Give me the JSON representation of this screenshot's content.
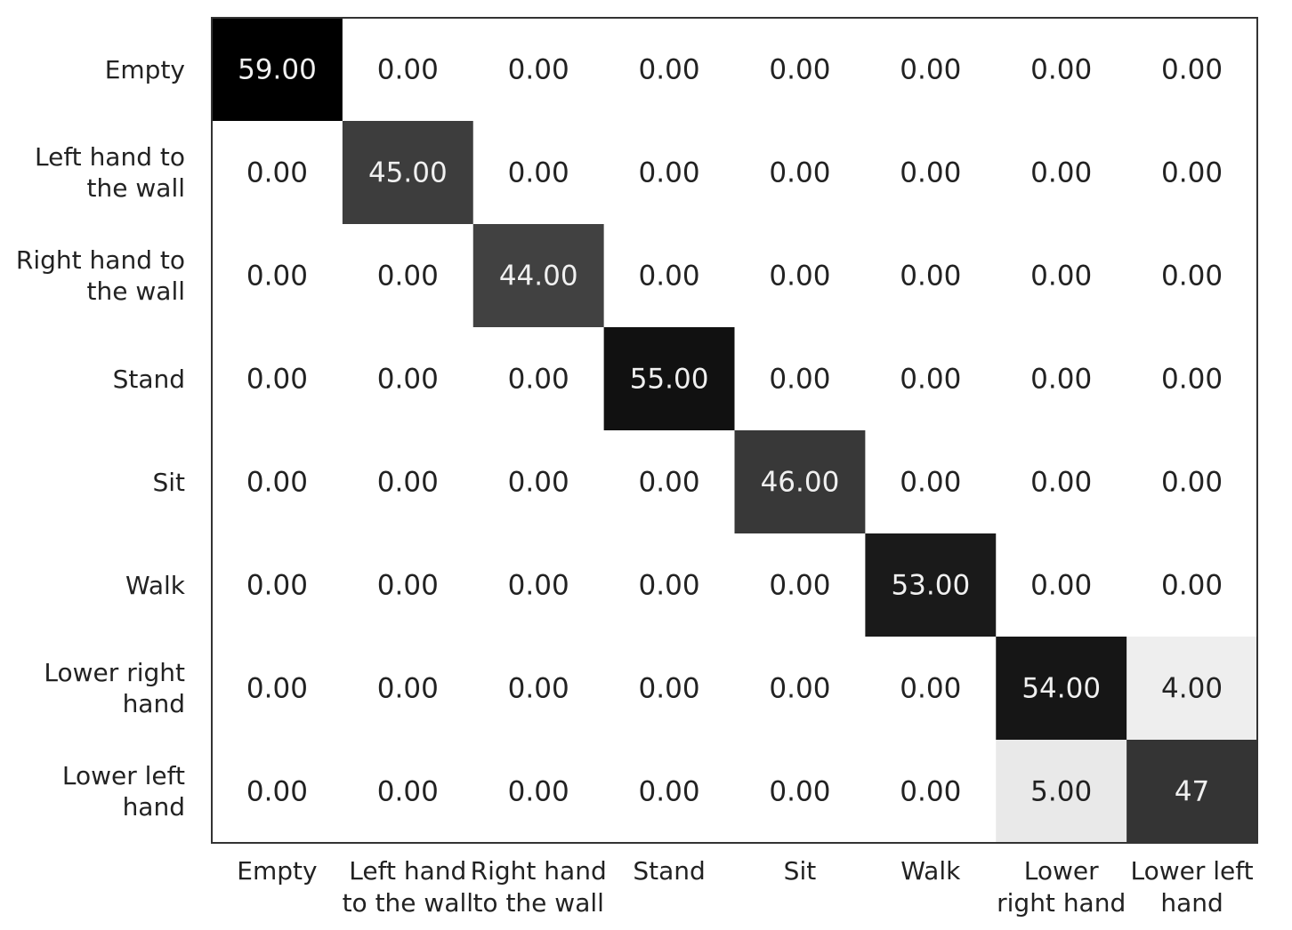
{
  "chart_data": {
    "type": "heatmap",
    "x_categories": [
      "Empty",
      "Left hand to the wall",
      "Right hand to the wall",
      "Stand",
      "Sit",
      "Walk",
      "Lower right hand",
      "Lower left hand"
    ],
    "y_categories": [
      "Empty",
      "Left hand to the wall",
      "Right hand to the wall",
      "Stand",
      "Sit",
      "Walk",
      "Lower right hand",
      "Lower left hand"
    ],
    "values": [
      [
        59,
        0,
        0,
        0,
        0,
        0,
        0,
        0
      ],
      [
        0,
        45,
        0,
        0,
        0,
        0,
        0,
        0
      ],
      [
        0,
        0,
        44,
        0,
        0,
        0,
        0,
        0
      ],
      [
        0,
        0,
        0,
        55,
        0,
        0,
        0,
        0
      ],
      [
        0,
        0,
        0,
        0,
        46,
        0,
        0,
        0
      ],
      [
        0,
        0,
        0,
        0,
        0,
        53,
        0,
        0
      ],
      [
        0,
        0,
        0,
        0,
        0,
        0,
        54,
        4
      ],
      [
        0,
        0,
        0,
        0,
        0,
        0,
        5,
        47
      ]
    ],
    "value_labels": [
      [
        "59.00",
        "0.00",
        "0.00",
        "0.00",
        "0.00",
        "0.00",
        "0.00",
        "0.00"
      ],
      [
        "0.00",
        "45.00",
        "0.00",
        "0.00",
        "0.00",
        "0.00",
        "0.00",
        "0.00"
      ],
      [
        "0.00",
        "0.00",
        "44.00",
        "0.00",
        "0.00",
        "0.00",
        "0.00",
        "0.00"
      ],
      [
        "0.00",
        "0.00",
        "0.00",
        "55.00",
        "0.00",
        "0.00",
        "0.00",
        "0.00"
      ],
      [
        "0.00",
        "0.00",
        "0.00",
        "0.00",
        "46.00",
        "0.00",
        "0.00",
        "0.00"
      ],
      [
        "0.00",
        "0.00",
        "0.00",
        "0.00",
        "0.00",
        "53.00",
        "0.00",
        "0.00"
      ],
      [
        "0.00",
        "0.00",
        "0.00",
        "0.00",
        "0.00",
        "0.00",
        "54.00",
        "4.00"
      ],
      [
        "0.00",
        "0.00",
        "0.00",
        "0.00",
        "0.00",
        "0.00",
        "5.00",
        "47"
      ]
    ],
    "colormap": [
      "#ffffff",
      "#000000"
    ]
  }
}
